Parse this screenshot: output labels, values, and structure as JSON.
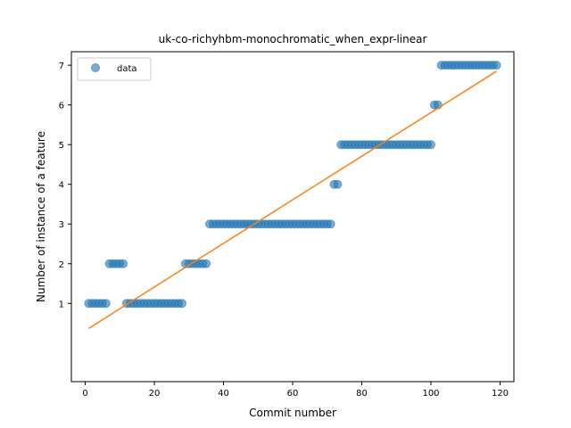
{
  "chart_data": {
    "type": "scatter",
    "title": "uk-co-richyhbm-monochromatic_when_expr-linear",
    "xlabel": "Commit number",
    "ylabel": "Number of instance of a feature",
    "xlim": [
      -4,
      124
    ],
    "ylim": [
      -0.97,
      7.34
    ],
    "xticks": [
      0,
      20,
      40,
      60,
      80,
      100,
      120
    ],
    "yticks": [
      1,
      2,
      3,
      4,
      5,
      6,
      7
    ],
    "grid": false,
    "legend": {
      "position": "top-left",
      "entries": [
        "data"
      ]
    },
    "series": [
      {
        "name": "data",
        "kind": "points",
        "color": "#1f77b4",
        "x": [
          1,
          2,
          3,
          4,
          5,
          6,
          7,
          8,
          9,
          10,
          11,
          12,
          13,
          14,
          15,
          16,
          17,
          18,
          19,
          20,
          21,
          22,
          23,
          24,
          25,
          26,
          27,
          28,
          29,
          30,
          31,
          32,
          33,
          34,
          35,
          36,
          37,
          38,
          39,
          40,
          41,
          42,
          43,
          44,
          45,
          46,
          47,
          48,
          49,
          50,
          51,
          52,
          53,
          54,
          55,
          56,
          57,
          58,
          59,
          60,
          61,
          62,
          63,
          64,
          65,
          66,
          67,
          68,
          69,
          70,
          71,
          72,
          73,
          74,
          75,
          76,
          77,
          78,
          79,
          80,
          81,
          82,
          83,
          84,
          85,
          86,
          87,
          88,
          89,
          90,
          91,
          92,
          93,
          94,
          95,
          96,
          97,
          98,
          99,
          100,
          101,
          102,
          103,
          104,
          105,
          106,
          107,
          108,
          109,
          110,
          111,
          112,
          113,
          114,
          115,
          116,
          117,
          118,
          119
        ],
        "y": [
          1,
          1,
          1,
          1,
          1,
          1,
          2,
          2,
          2,
          2,
          2,
          1,
          1,
          1,
          1,
          1,
          1,
          1,
          1,
          1,
          1,
          1,
          1,
          1,
          1,
          1,
          1,
          1,
          2,
          2,
          2,
          2,
          2,
          2,
          2,
          3,
          3,
          3,
          3,
          3,
          3,
          3,
          3,
          3,
          3,
          3,
          3,
          3,
          3,
          3,
          3,
          3,
          3,
          3,
          3,
          3,
          3,
          3,
          3,
          3,
          3,
          3,
          3,
          3,
          3,
          3,
          3,
          3,
          3,
          3,
          3,
          4,
          4,
          5,
          5,
          5,
          5,
          5,
          5,
          5,
          5,
          5,
          5,
          5,
          5,
          5,
          5,
          5,
          5,
          5,
          5,
          5,
          5,
          5,
          5,
          5,
          5,
          5,
          5,
          5,
          6,
          6,
          7,
          7,
          7,
          7,
          7,
          7,
          7,
          7,
          7,
          7,
          7,
          7,
          7,
          7,
          7,
          7,
          7
        ]
      },
      {
        "name": "",
        "kind": "line",
        "color": "#ff7f0e",
        "x": [
          1,
          119
        ],
        "y": [
          0.37,
          6.85
        ]
      }
    ]
  }
}
